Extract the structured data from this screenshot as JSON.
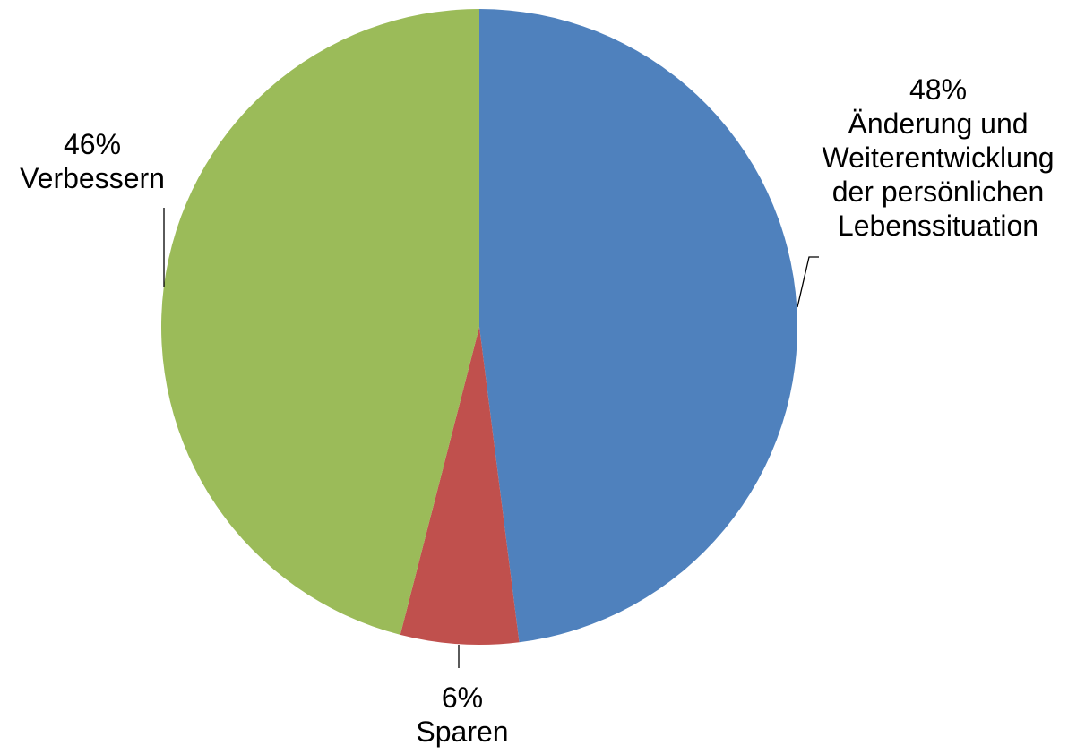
{
  "chart_data": {
    "type": "pie",
    "title": "",
    "start_angle_deg": 0,
    "direction": "clockwise",
    "legend": "none",
    "slices": [
      {
        "label": "Änderung und Weiterentwicklung der persönlichen Lebenssituation",
        "value": 48,
        "value_label": "48%",
        "label_lines": [
          "Änderung und",
          "Weiterentwicklung",
          "der persönlichen",
          "Lebenssituation"
        ],
        "color": "#4F81BD"
      },
      {
        "label": "Sparen",
        "value": 6,
        "value_label": "6%",
        "label_lines": [
          "Sparen"
        ],
        "color": "#C0504D"
      },
      {
        "label": "Verbessern",
        "value": 46,
        "value_label": "46%",
        "label_lines": [
          "Verbessern"
        ],
        "color": "#9BBB59"
      }
    ]
  }
}
